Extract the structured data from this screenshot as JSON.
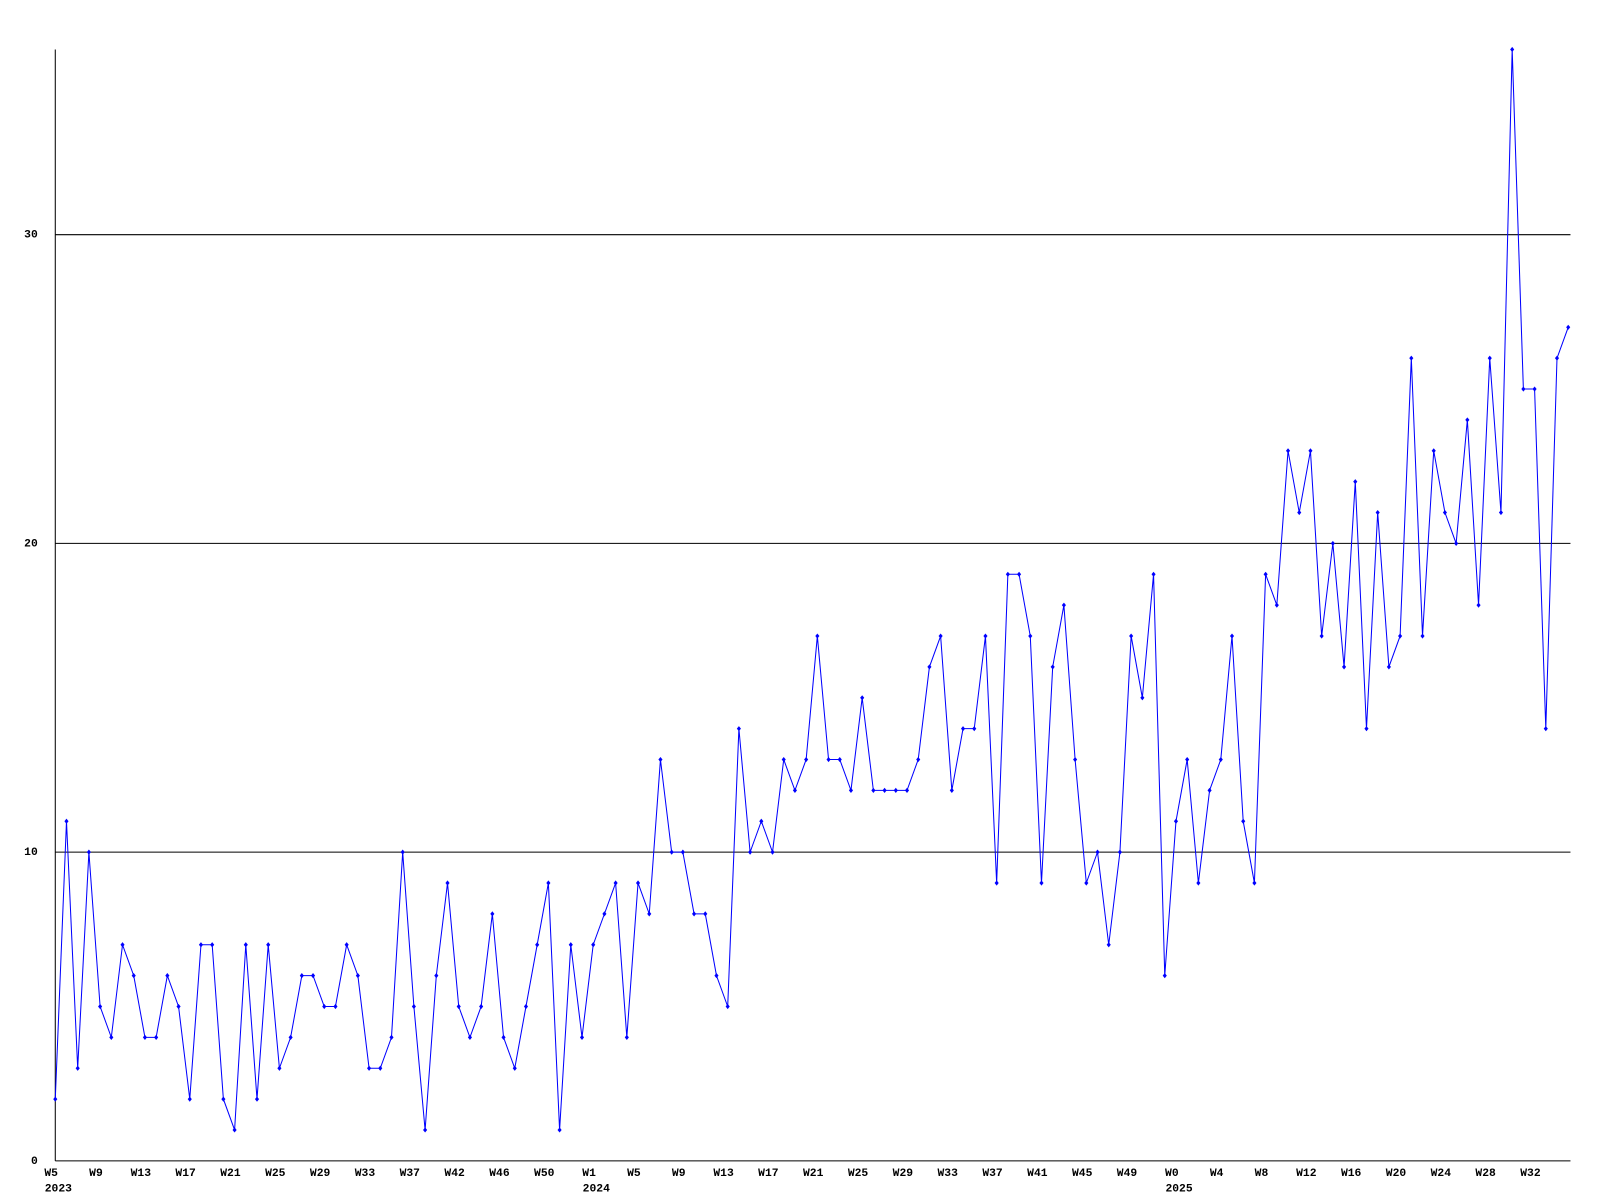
{
  "chart_data": {
    "type": "line",
    "color": "#0000ff",
    "ylim": [
      0,
      36
    ],
    "yticks": [
      0,
      10,
      20,
      30
    ],
    "grid": true,
    "categories": [
      "W5",
      null,
      null,
      null,
      "W9",
      null,
      null,
      null,
      "W13",
      null,
      null,
      null,
      "W17",
      null,
      null,
      null,
      "W21",
      null,
      null,
      null,
      "W25",
      null,
      null,
      null,
      "W29",
      null,
      null,
      null,
      "W33",
      null,
      null,
      null,
      "W37",
      null,
      null,
      null,
      "W42",
      null,
      null,
      null,
      "W46",
      null,
      null,
      null,
      "W50",
      null,
      null,
      null,
      "W1",
      null,
      null,
      null,
      "W5",
      null,
      null,
      null,
      "W9",
      null,
      null,
      null,
      "W13",
      null,
      null,
      null,
      "W17",
      null,
      null,
      null,
      "W21",
      null,
      null,
      null,
      "W25",
      null,
      null,
      null,
      "W29",
      null,
      null,
      null,
      "W33",
      null,
      null,
      null,
      "W37",
      null,
      null,
      null,
      "W41",
      null,
      null,
      null,
      "W45",
      null,
      null,
      null,
      "W49",
      null,
      null,
      null,
      "W0",
      null,
      null,
      null,
      "W4",
      null,
      null,
      null,
      "W8",
      null,
      null,
      null,
      "W12",
      null,
      null,
      null,
      "W16",
      null,
      null,
      null,
      "W20",
      null,
      null,
      null,
      "W24",
      null,
      null,
      null,
      "W28",
      null,
      null,
      null,
      "W32",
      null,
      null,
      null
    ],
    "category_years": [
      "2023",
      null,
      null,
      null,
      null,
      null,
      null,
      null,
      null,
      null,
      null,
      null,
      null,
      null,
      null,
      null,
      null,
      null,
      null,
      null,
      null,
      null,
      null,
      null,
      null,
      null,
      null,
      null,
      null,
      null,
      null,
      null,
      null,
      null,
      null,
      null,
      null,
      null,
      null,
      null,
      null,
      null,
      null,
      null,
      null,
      null,
      null,
      null,
      "2024",
      null,
      null,
      null,
      null,
      null,
      null,
      null,
      null,
      null,
      null,
      null,
      null,
      null,
      null,
      null,
      null,
      null,
      null,
      null,
      null,
      null,
      null,
      null,
      null,
      null,
      null,
      null,
      null,
      null,
      null,
      null,
      null,
      null,
      null,
      null,
      null,
      null,
      null,
      null,
      null,
      null,
      null,
      null,
      null,
      null,
      null,
      null,
      null,
      null,
      null,
      null,
      "2025",
      null,
      null,
      null,
      null,
      null,
      null,
      null,
      null,
      null,
      null,
      null,
      null,
      null,
      null,
      null,
      null,
      null,
      null,
      null,
      null,
      null,
      null,
      null,
      null,
      null,
      null,
      null,
      null,
      null,
      null,
      null,
      null,
      null,
      null,
      null
    ],
    "values": [
      2,
      11,
      3,
      10,
      5,
      4,
      7,
      6,
      4,
      4,
      6,
      5,
      2,
      7,
      7,
      2,
      1,
      7,
      2,
      7,
      3,
      4,
      6,
      6,
      5,
      5,
      7,
      6,
      3,
      3,
      4,
      10,
      5,
      1,
      6,
      9,
      5,
      4,
      5,
      8,
      4,
      3,
      5,
      7,
      9,
      1,
      7,
      4,
      7,
      8,
      9,
      4,
      9,
      8,
      13,
      10,
      10,
      8,
      8,
      6,
      5,
      14,
      10,
      11,
      10,
      13,
      12,
      13,
      17,
      13,
      13,
      12,
      15,
      12,
      12,
      12,
      12,
      13,
      16,
      17,
      12,
      14,
      14,
      17,
      9,
      19,
      19,
      17,
      9,
      16,
      18,
      13,
      9,
      10,
      7,
      10,
      17,
      15,
      19,
      6,
      11,
      13,
      9,
      12,
      13,
      17,
      11,
      9,
      19,
      18,
      23,
      21,
      23,
      17,
      20,
      16,
      22,
      14,
      21,
      16,
      17,
      26,
      17,
      23,
      21,
      20,
      24,
      18,
      26,
      21,
      36,
      25,
      25,
      14,
      26,
      27
    ]
  }
}
